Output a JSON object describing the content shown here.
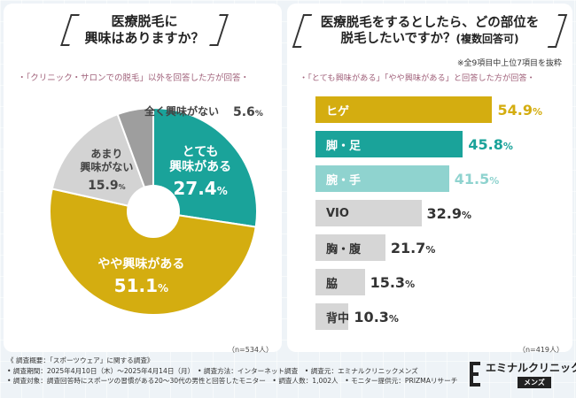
{
  "left": {
    "title_line1": "医療脱毛に",
    "title_line2": "興味はありますか？",
    "subnote": "・「クリニック・サロンでの脱毛」以外を回答した方が回答・",
    "n": "（n=534人）"
  },
  "right": {
    "title_line1": "医療脱毛をするとしたら、どの部位を",
    "title_line2": "脱毛したいですか？",
    "title_small": "(複数回答可)",
    "note_top": "※全9項目中上位7項目を抜粋",
    "subnote": "・「とても興味がある」「やや興味がある」と回答した方が回答・",
    "n": "（n=419人）"
  },
  "chart_data": [
    {
      "type": "pie",
      "title": "医療脱毛に興味はありますか？",
      "unit": "%",
      "slices": [
        {
          "label": "とても興味がある",
          "label_lines": [
            "とても",
            "興味がある"
          ],
          "value": 27.4,
          "value_text": "27.4",
          "color": "#1aa39a",
          "text_color": "#ffffff"
        },
        {
          "label": "やや興味がある",
          "label_lines": [
            "やや興味がある"
          ],
          "value": 51.1,
          "value_text": "51.1",
          "color": "#d4ad10",
          "text_color": "#ffffff"
        },
        {
          "label": "あまり興味がない",
          "label_lines": [
            "あまり",
            "興味がない"
          ],
          "value": 15.9,
          "value_text": "15.9",
          "color": "#d3d3d3",
          "text_color": "#444444"
        },
        {
          "label": "全く興味がない",
          "label_lines": [
            "全く興味がない"
          ],
          "value": 5.6,
          "value_text": "5.6",
          "color": "#9e9e9e",
          "text_color": "#444444"
        }
      ]
    },
    {
      "type": "bar",
      "orientation": "horizontal",
      "title": "医療脱毛をするとしたら、どの部位を脱毛したいですか？",
      "unit": "%",
      "xlim": [
        0,
        60
      ],
      "categories": [
        "ヒゲ",
        "脚・足",
        "腕・手",
        "VIO",
        "胸・腹",
        "脇",
        "背中"
      ],
      "values": [
        54.9,
        45.8,
        41.5,
        32.9,
        21.7,
        15.3,
        10.3
      ],
      "value_texts": [
        "54.9",
        "45.8",
        "41.5",
        "32.9",
        "21.7",
        "15.3",
        "10.3"
      ],
      "bar_colors": [
        "#d4ad10",
        "#1aa39a",
        "#8fd3cf",
        "#d6d6d6",
        "#d6d6d6",
        "#d6d6d6",
        "#d6d6d6"
      ],
      "label_colors": [
        "#ffffff",
        "#ffffff",
        "#ffffff",
        "#333333",
        "#333333",
        "#333333",
        "#333333"
      ],
      "value_colors": [
        "#d4ad10",
        "#1aa39a",
        "#8fd3cf",
        "#333333",
        "#333333",
        "#333333",
        "#333333"
      ]
    }
  ],
  "footer": {
    "line1": "《 調査概要：「スポーツウェア」に関する調査》",
    "line2": "• 調査期間：2025年4月10日（木）〜2025年4月14日（月）　• 調査方法：インターネット調査　• 調査元：エミナルクリニックメンズ",
    "line3": "• 調査対象：調査回答時にスポーツの習慣がある20〜30代の男性と回答したモニター　• 調査人数：1,002人　• モニター提供元：PRIZMAリサーチ"
  },
  "logo": {
    "name": "エミナルクリニック",
    "sub": "メンズ"
  }
}
